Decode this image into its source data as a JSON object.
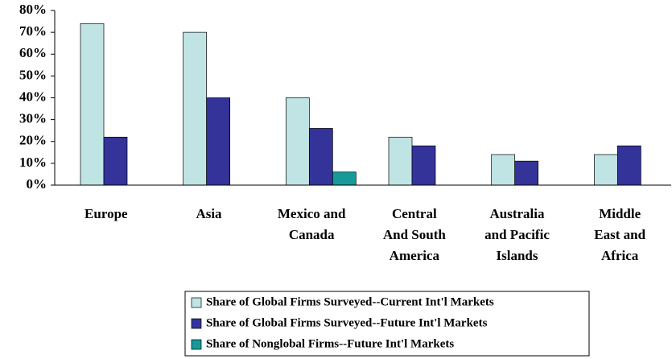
{
  "chart_data": {
    "type": "bar",
    "categories": [
      [
        "Europe"
      ],
      [
        "Asia"
      ],
      [
        "Mexico and",
        "Canada"
      ],
      [
        "Central",
        "And South",
        "America"
      ],
      [
        "Australia",
        "and Pacific",
        "Islands"
      ],
      [
        "Middle",
        "East and",
        "Africa"
      ]
    ],
    "series": [
      {
        "name": "Share of Global Firms Surveyed--Current Int'l Markets",
        "color": "#c0e4e4",
        "values": [
          74,
          70,
          40,
          22,
          14,
          14
        ]
      },
      {
        "name": "Share of Global Firms Surveyed--Future Int'l Markets",
        "color": "#333399",
        "values": [
          22,
          40,
          26,
          18,
          11,
          18
        ]
      },
      {
        "name": "Share of Nonglobal Firms--Future Int'l Markets",
        "color": "#169a99",
        "values": [
          null,
          null,
          6,
          null,
          null,
          null
        ]
      }
    ],
    "ylim": [
      0,
      80
    ],
    "yticks": [
      {
        "value": 0,
        "label": "0%"
      },
      {
        "value": 10,
        "label": "10%"
      },
      {
        "value": 20,
        "label": "20%"
      },
      {
        "value": 30,
        "label": "30%"
      },
      {
        "value": 40,
        "label": "40%"
      },
      {
        "value": 50,
        "label": "50%"
      },
      {
        "value": 60,
        "label": "60%"
      },
      {
        "value": 70,
        "label": "70%"
      },
      {
        "value": 80,
        "label": "80%"
      }
    ],
    "grid": false
  }
}
